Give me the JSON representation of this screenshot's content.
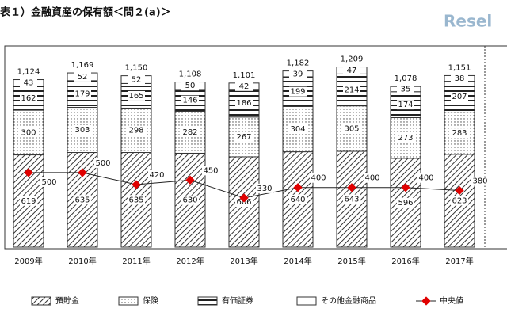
{
  "chart_data": {
    "type": "stacked-bar-line",
    "title": "表１）金融資産の保有額＜問２(a)＞",
    "watermark": "Resel",
    "categories": [
      "2009年",
      "2010年",
      "2011年",
      "2012年",
      "2013年",
      "2014年",
      "2015年",
      "2016年",
      "2017年"
    ],
    "series": [
      {
        "name": "預貯金",
        "color": "#333333",
        "pattern": "hatch",
        "values": [
          619,
          635,
          635,
          630,
          606,
          640,
          643,
          596,
          623
        ]
      },
      {
        "name": "保険",
        "color": "#333333",
        "pattern": "dots",
        "values": [
          300,
          303,
          298,
          282,
          267,
          304,
          305,
          273,
          283
        ]
      },
      {
        "name": "有価証券",
        "color": "#333333",
        "pattern": "stripes",
        "values": [
          162,
          179,
          165,
          146,
          186,
          199,
          214,
          174,
          207
        ]
      },
      {
        "name": "その他金融商品",
        "color": "#333333",
        "pattern": "plain",
        "values": [
          43,
          52,
          52,
          50,
          42,
          39,
          47,
          35,
          38
        ]
      }
    ],
    "totals": {
      "values": [
        1124,
        1169,
        1150,
        1108,
        1101,
        1182,
        1209,
        1078,
        1151
      ],
      "value_labels": [
        "1,124",
        "1,169",
        "1,150",
        "1,108",
        "1,101",
        "1,182",
        "1,209",
        "1,078",
        "1,151"
      ]
    },
    "line": {
      "name": "中央値",
      "color": "#e00000",
      "values": [
        500,
        500,
        420,
        450,
        330,
        400,
        400,
        400,
        380
      ]
    },
    "ylim": [
      0,
      1350
    ]
  }
}
